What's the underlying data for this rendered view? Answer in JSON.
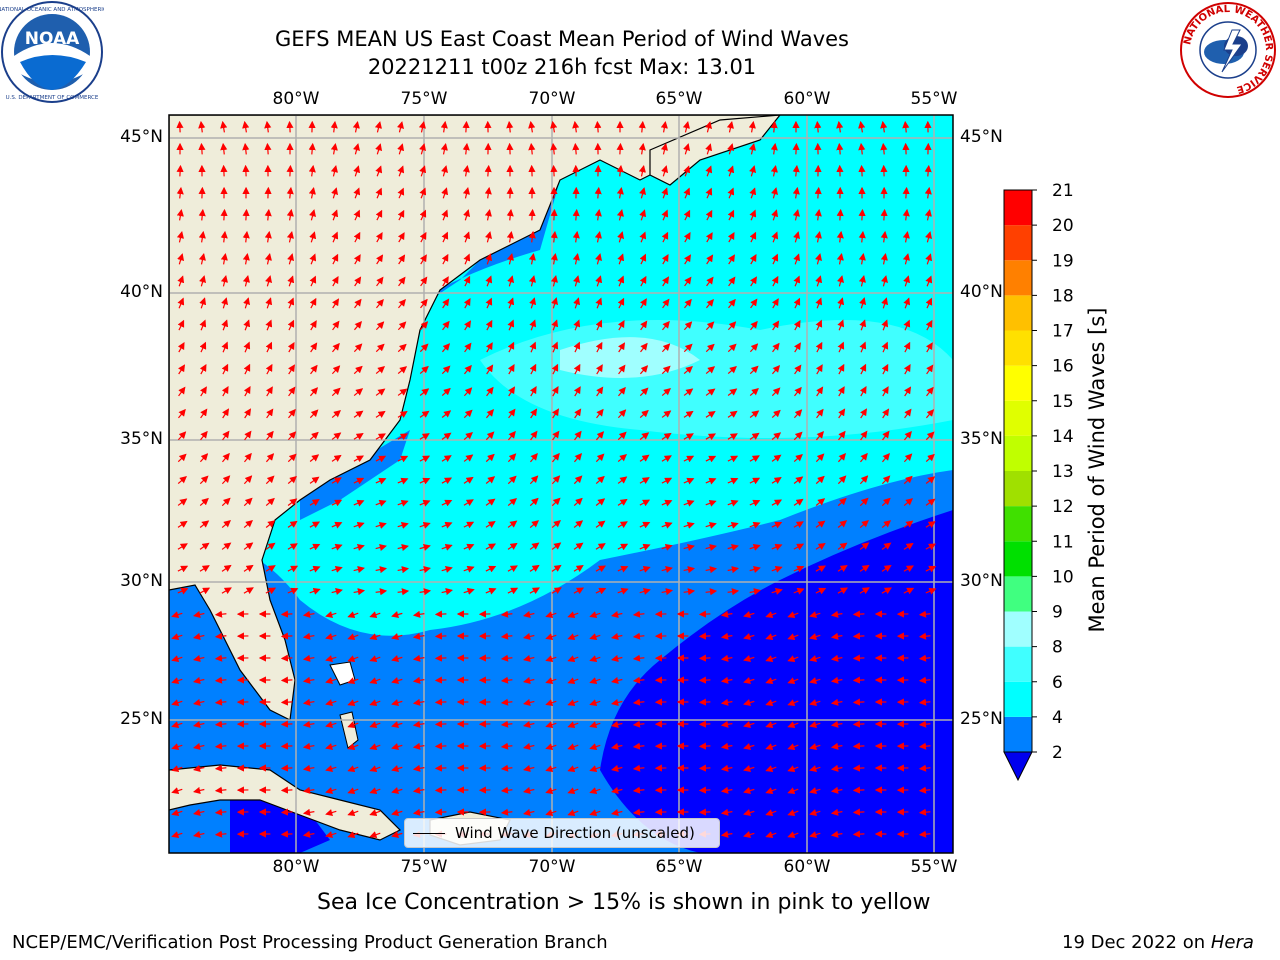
{
  "title": {
    "line1": "GEFS MEAN US East Coast Mean Period of Wind Waves",
    "line2": "20221211 t00z 216h fcst   Max: 13.01"
  },
  "logos": {
    "noaa": {
      "icon": "noaa-logo-icon",
      "text": "NOAA"
    },
    "nws": {
      "icon": "nws-logo-icon",
      "ring_text": "NATIONAL WEATHER SERVICE"
    }
  },
  "map": {
    "lon_labels": [
      "80°W",
      "75°W",
      "70°W",
      "65°W",
      "60°W",
      "55°W"
    ],
    "lat_labels": [
      "45°N",
      "40°N",
      "35°N",
      "30°N",
      "25°N"
    ],
    "colors": {
      "land": "#efedda",
      "gridline": "#b0b0b0",
      "arrow": "#ff0000",
      "coast": "#000000"
    },
    "arrow_icon": "red-direction-arrow-icon"
  },
  "legend": {
    "label": "Wind Wave Direction (unscaled)"
  },
  "colorbar": {
    "label": "Mean Period of Wind Waves [s]",
    "ticks": [
      "2",
      "4",
      "6",
      "8",
      "9",
      "10",
      "11",
      "12",
      "13",
      "14",
      "15",
      "16",
      "17",
      "18",
      "19",
      "20",
      "21"
    ],
    "colors": [
      "#0000ff",
      "#0080ff",
      "#00ffff",
      "#40ffff",
      "#a0ffff",
      "#40ff80",
      "#00e000",
      "#40e000",
      "#a0e000",
      "#c0ff00",
      "#e0ff00",
      "#ffff00",
      "#ffe000",
      "#ffc000",
      "#ff8000",
      "#ff4000",
      "#ff0000"
    ],
    "extend_color": "#0000ee"
  },
  "notes": {
    "sea_ice": "Sea Ice Concentration > 15% is shown in pink to yellow",
    "footer_left": "NCEP/EMC/Verification Post Processing Product Generation Branch",
    "footer_date": "19 Dec 2022 on",
    "footer_machine": "Hera"
  }
}
